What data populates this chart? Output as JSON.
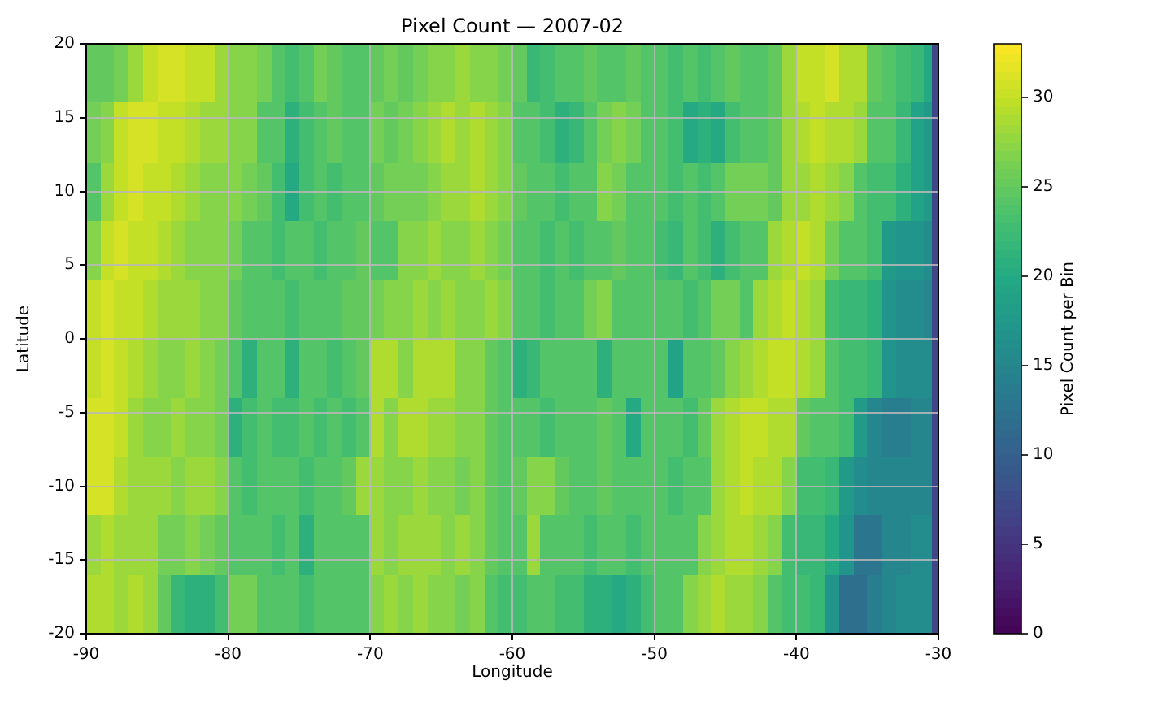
{
  "chart_data": {
    "type": "heatmap",
    "title": "Pixel Count — 2007-02",
    "xlabel": "Longitude",
    "ylabel": "Latitude",
    "clabel": "Pixel Count per Bin",
    "x": [
      -89.5,
      -88.5,
      -87.5,
      -86.5,
      -85.5,
      -84.5,
      -83.5,
      -82.5,
      -81.5,
      -80.5,
      -79.5,
      -78.5,
      -77.5,
      -76.5,
      -75.5,
      -74.5,
      -73.5,
      -72.5,
      -71.5,
      -70.5,
      -69.5,
      -68.5,
      -67.5,
      -66.5,
      -65.5,
      -64.5,
      -63.5,
      -62.5,
      -61.5,
      -60.5,
      -59.5,
      -58.5,
      -57.5,
      -56.5,
      -55.5,
      -54.5,
      -53.5,
      -52.5,
      -51.5,
      -50.5,
      -49.5,
      -48.5,
      -47.5,
      -46.5,
      -45.5,
      -44.5,
      -43.5,
      -42.5,
      -41.5,
      -40.5,
      -39.5,
      -38.5,
      -37.5,
      -36.5,
      -35.5,
      -34.5,
      -33.5,
      -32.5,
      -31.5,
      -30.75,
      -30.25
    ],
    "y": [
      18,
      14,
      10,
      6,
      2,
      -2,
      -6,
      -10,
      -14,
      -18
    ],
    "cells": [
      [
        25,
        25,
        26,
        28,
        30,
        31,
        31,
        30,
        30,
        28,
        27,
        27,
        26,
        24,
        23,
        24,
        26,
        25,
        24,
        24,
        25,
        26,
        25,
        26,
        27,
        27,
        28,
        27,
        27,
        26,
        25,
        22,
        23,
        24,
        24,
        25,
        24,
        24,
        25,
        24,
        24,
        23,
        24,
        23,
        24,
        25,
        24,
        24,
        25,
        28,
        30,
        30,
        31,
        29,
        29,
        25,
        24,
        23,
        22,
        20,
        7
      ],
      [
        26,
        27,
        30,
        31,
        31,
        30,
        30,
        29,
        28,
        28,
        27,
        27,
        24,
        24,
        21,
        23,
        24,
        25,
        24,
        24,
        26,
        25,
        26,
        27,
        28,
        29,
        28,
        29,
        28,
        27,
        24,
        24,
        23,
        21,
        22,
        24,
        26,
        27,
        26,
        24,
        24,
        23,
        20,
        21,
        20,
        23,
        24,
        24,
        25,
        28,
        29,
        30,
        29,
        29,
        28,
        24,
        24,
        22,
        19,
        18,
        7
      ],
      [
        24,
        28,
        30,
        31,
        30,
        30,
        29,
        28,
        27,
        27,
        27,
        26,
        25,
        23,
        20,
        23,
        24,
        23,
        24,
        24,
        25,
        26,
        26,
        26,
        27,
        28,
        28,
        29,
        28,
        27,
        25,
        24,
        24,
        23,
        24,
        24,
        27,
        26,
        24,
        24,
        24,
        23,
        24,
        23,
        24,
        26,
        26,
        26,
        25,
        28,
        28,
        29,
        28,
        27,
        24,
        23,
        23,
        21,
        19,
        18,
        7
      ],
      [
        27,
        30,
        31,
        30,
        30,
        29,
        28,
        27,
        27,
        27,
        26,
        24,
        24,
        23,
        24,
        24,
        23,
        24,
        24,
        25,
        24,
        24,
        27,
        27,
        28,
        27,
        27,
        28,
        27,
        26,
        24,
        24,
        23,
        24,
        23,
        24,
        24,
        25,
        24,
        24,
        23,
        22,
        24,
        23,
        21,
        23,
        24,
        24,
        28,
        29,
        30,
        29,
        26,
        24,
        24,
        23,
        18,
        17,
        17,
        16,
        7
      ],
      [
        30,
        31,
        30,
        30,
        29,
        28,
        28,
        28,
        27,
        27,
        25,
        24,
        24,
        24,
        23,
        24,
        24,
        24,
        25,
        25,
        26,
        27,
        27,
        28,
        27,
        28,
        27,
        27,
        28,
        27,
        24,
        24,
        23,
        24,
        24,
        26,
        27,
        24,
        24,
        24,
        24,
        24,
        23,
        24,
        26,
        26,
        24,
        28,
        29,
        30,
        29,
        28,
        23,
        22,
        22,
        21,
        17,
        16,
        16,
        15,
        7
      ],
      [
        30,
        31,
        30,
        29,
        28,
        27,
        27,
        28,
        27,
        26,
        24,
        21,
        24,
        24,
        21,
        24,
        24,
        23,
        24,
        25,
        29,
        29,
        27,
        29,
        29,
        29,
        27,
        27,
        25,
        24,
        21,
        22,
        24,
        24,
        24,
        24,
        21,
        24,
        24,
        24,
        24,
        19,
        24,
        24,
        25,
        27,
        28,
        29,
        30,
        30,
        29,
        28,
        24,
        23,
        23,
        22,
        17,
        16,
        16,
        16,
        7
      ],
      [
        31,
        31,
        30,
        28,
        27,
        27,
        28,
        27,
        27,
        26,
        21,
        23,
        24,
        23,
        23,
        24,
        23,
        24,
        23,
        24,
        29,
        27,
        29,
        29,
        28,
        28,
        27,
        27,
        25,
        24,
        24,
        24,
        23,
        24,
        24,
        24,
        25,
        24,
        20,
        24,
        24,
        24,
        23,
        25,
        28,
        29,
        30,
        30,
        29,
        29,
        25,
        24,
        24,
        23,
        18,
        15,
        14,
        14,
        15,
        15,
        7
      ],
      [
        31,
        31,
        29,
        28,
        28,
        28,
        27,
        28,
        28,
        27,
        24,
        23,
        24,
        24,
        24,
        23,
        24,
        24,
        25,
        28,
        28,
        27,
        27,
        28,
        27,
        27,
        26,
        27,
        25,
        24,
        25,
        27,
        27,
        25,
        24,
        24,
        25,
        24,
        24,
        24,
        24,
        23,
        24,
        24,
        28,
        29,
        30,
        29,
        29,
        27,
        23,
        23,
        22,
        18,
        16,
        15,
        15,
        15,
        15,
        15,
        7
      ],
      [
        28,
        29,
        28,
        28,
        28,
        26,
        26,
        27,
        26,
        25,
        24,
        24,
        24,
        23,
        24,
        21,
        24,
        24,
        24,
        24,
        28,
        27,
        28,
        28,
        28,
        27,
        28,
        27,
        25,
        24,
        24,
        28,
        24,
        24,
        24,
        23,
        24,
        24,
        23,
        24,
        24,
        24,
        24,
        27,
        28,
        29,
        29,
        28,
        27,
        23,
        22,
        22,
        20,
        17,
        13,
        13,
        15,
        15,
        16,
        16,
        7
      ],
      [
        29,
        29,
        28,
        29,
        28,
        25,
        22,
        21,
        21,
        23,
        26,
        26,
        24,
        24,
        24,
        23,
        24,
        24,
        24,
        24,
        27,
        28,
        27,
        28,
        27,
        27,
        26,
        27,
        24,
        23,
        23,
        24,
        24,
        23,
        23,
        21,
        21,
        20,
        21,
        23,
        24,
        24,
        27,
        28,
        29,
        28,
        28,
        27,
        24,
        23,
        23,
        22,
        17,
        12,
        12,
        14,
        15,
        16,
        16,
        16,
        7
      ]
    ],
    "xlim": [
      -90,
      -30
    ],
    "xticks": [
      -90,
      -80,
      -70,
      -60,
      -50,
      -40,
      -30
    ],
    "ylim": [
      -20,
      20
    ],
    "yticks": [
      -20,
      -15,
      -10,
      -5,
      0,
      5,
      10,
      15,
      20
    ],
    "clim": [
      0,
      33
    ],
    "cticks": [
      0,
      5,
      10,
      15,
      20,
      25,
      30
    ],
    "grid": true
  }
}
